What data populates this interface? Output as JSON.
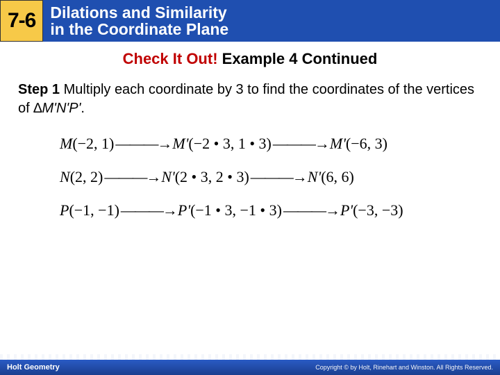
{
  "header": {
    "lesson_number": "7-6",
    "title_line1": "Dilations and Similarity",
    "title_line2": "in the Coordinate Plane",
    "badge_bg": "#f7c948",
    "title_bg": "#1f4fb0"
  },
  "subheading": {
    "red_text": "Check It Out!",
    "black_text": " Example 4 Continued"
  },
  "step": {
    "label": "Step 1",
    "text_before_delta": " Multiply each coordinate by 3 to find the coordinates of the vertices of ∆",
    "triangle_name": "M'N'P'",
    "text_after": "."
  },
  "math": {
    "rows": [
      {
        "orig_var": "M",
        "orig_coords": "(−2, 1)",
        "mid_var": "M'",
        "mid_coords": "(−2 • 3, 1 • 3)",
        "final_var": "M'",
        "final_coords": "(−6, 3)"
      },
      {
        "orig_var": "N",
        "orig_coords": "(2, 2)",
        "mid_var": "N'",
        "mid_coords": "(2 • 3, 2 • 3)",
        "final_var": "N'",
        "final_coords": "(6, 6)"
      },
      {
        "orig_var": "P",
        "orig_coords": "(−1, −1)",
        "mid_var": "P'",
        "mid_coords": "(−1 • 3, −1 • 3)",
        "final_var": "P'",
        "final_coords": "(−3, −3)"
      }
    ],
    "arrow_glyph": "———→"
  },
  "footer": {
    "left": "Holt Geometry",
    "right": "Copyright © by Holt, Rinehart and Winston. All Rights Reserved."
  }
}
